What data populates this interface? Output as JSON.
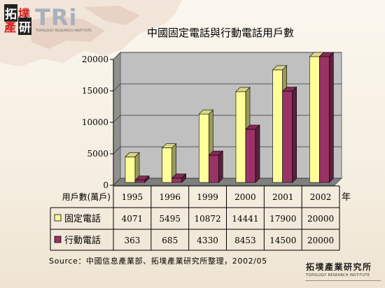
{
  "logo": {
    "chars": [
      "拓",
      "墣",
      "產",
      "研"
    ],
    "tri": "TRi",
    "subtitle": "TOPOLOGY RESEARCH INSTITUTE"
  },
  "footer_logo": {
    "cn": "拓墣產業研究所",
    "en": "TOPOLOGY RESEARCH INSTITUTE"
  },
  "source": "Source：中國信息產業部、拓墣產業研究所整理，2002/05",
  "chart_data": {
    "type": "bar",
    "title": "中國固定電話與行動電話用戶數",
    "categories": [
      "1995",
      "1996",
      "1999",
      "2000",
      "2001",
      "2002"
    ],
    "xlabel": "年",
    "ylabel": "",
    "table_header": "用戶數(萬戶)",
    "ylim": [
      0,
      20000
    ],
    "yticks": [
      "0",
      "5000",
      "10000",
      "15000",
      "20000"
    ],
    "grid": true,
    "series": [
      {
        "name": "固定電話",
        "values": [
          4071,
          5495,
          10872,
          14441,
          17900,
          20000
        ],
        "color": "#ffff99"
      },
      {
        "name": "行動電話",
        "values": [
          363,
          685,
          4330,
          8453,
          14500,
          20000
        ],
        "color": "#993366"
      }
    ]
  }
}
